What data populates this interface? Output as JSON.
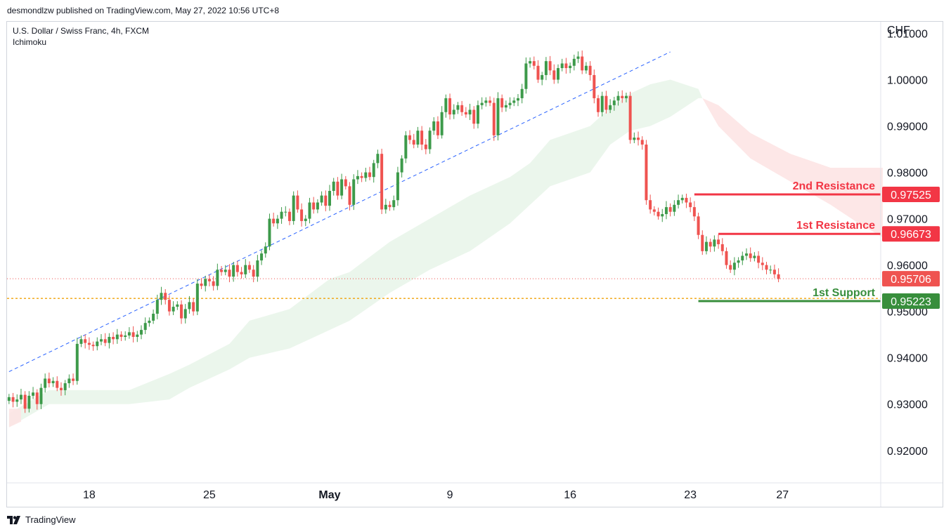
{
  "caption": "desmondlzw published on TradingView.com, May 27, 2022 10:56 UTC+8",
  "footer_brand": "TradingView",
  "colors": {
    "up": "#26a69a",
    "up_candle": "#3d9a4a",
    "down": "#ef5350",
    "cloud_green": "#e8f5e9",
    "cloud_red": "#fde4e4",
    "trendline": "#2962ff",
    "support": "#388e3c",
    "resistance": "#f23645",
    "yellow_dotted": "#f0a30a"
  },
  "chart_data": {
    "type": "candlestick",
    "symbol_line": "U.S. Dollar / Swiss Franc, 4h, FXCM",
    "indicator": "Ichimoku",
    "currency": "CHF",
    "y_ticks": [
      "1.01000",
      "1.00000",
      "0.99000",
      "0.98000",
      "0.97000",
      "0.96000",
      "0.95000",
      "0.94000",
      "0.93000",
      "0.92000"
    ],
    "y_tick_values": [
      1.01,
      1.0,
      0.99,
      0.98,
      0.97,
      0.96,
      0.95,
      0.94,
      0.93,
      0.92
    ],
    "ylim": [
      0.913,
      1.0125
    ],
    "x_ticks": [
      {
        "label": "18",
        "bold": false,
        "index": 20
      },
      {
        "label": "25",
        "bold": false,
        "index": 50
      },
      {
        "label": "May",
        "bold": true,
        "index": 80
      },
      {
        "label": "9",
        "bold": false,
        "index": 110
      },
      {
        "label": "16",
        "bold": false,
        "index": 140
      },
      {
        "label": "23",
        "bold": false,
        "index": 170
      },
      {
        "label": "27",
        "bold": false,
        "index": 193
      }
    ],
    "n_slots": 218,
    "closes": [
      0.9315,
      0.9305,
      0.931,
      0.932,
      0.929,
      0.9318,
      0.9325,
      0.93,
      0.9335,
      0.9355,
      0.9345,
      0.935,
      0.9335,
      0.933,
      0.9345,
      0.9355,
      0.935,
      0.943,
      0.944,
      0.9432,
      0.9428,
      0.9425,
      0.9435,
      0.944,
      0.9432,
      0.9445,
      0.944,
      0.945,
      0.9445,
      0.9448,
      0.9455,
      0.9445,
      0.945,
      0.946,
      0.9475,
      0.948,
      0.9495,
      0.9525,
      0.954,
      0.9525,
      0.95,
      0.951,
      0.9515,
      0.9485,
      0.9505,
      0.952,
      0.95,
      0.956,
      0.9555,
      0.957,
      0.9565,
      0.9555,
      0.959,
      0.9585,
      0.959,
      0.9575,
      0.96,
      0.9585,
      0.958,
      0.96,
      0.959,
      0.9575,
      0.961,
      0.9625,
      0.964,
      0.97,
      0.969,
      0.97,
      0.9715,
      0.9715,
      0.9695,
      0.975,
      0.972,
      0.9695,
      0.97,
      0.9735,
      0.972,
      0.9735,
      0.975,
      0.9728,
      0.976,
      0.978,
      0.975,
      0.9785,
      0.977,
      0.973,
      0.9785,
      0.9792,
      0.9788,
      0.98,
      0.979,
      0.982,
      0.984,
      0.972,
      0.973,
      0.9725,
      0.974,
      0.98,
      0.983,
      0.988,
      0.987,
      0.986,
      0.989,
      0.986,
      0.985,
      0.989,
      0.991,
      0.988,
      0.993,
      0.996,
      0.9925,
      0.9935,
      0.9945,
      0.993,
      0.9925,
      0.9935,
      0.9905,
      0.9945,
      0.995,
      0.9955,
      0.995,
      0.988,
      0.996,
      0.994,
      0.9945,
      0.995,
      0.9955,
      0.996,
      0.998,
      1.0035,
      1.004,
      1.003,
      1.0,
      1.001,
      1.004,
      1.002,
      1.0,
      1.0025,
      1.0035,
      1.0025,
      1.003,
      1.0045,
      1.005,
      1.002,
      1.003,
      1.001,
      0.996,
      0.993,
      0.9965,
      0.9935,
      0.9945,
      0.9955,
      0.9965,
      0.996,
      0.9965,
      0.987,
      0.9875,
      0.987,
      0.986,
      0.974,
      0.972,
      0.9715,
      0.9705,
      0.971,
      0.9725,
      0.9715,
      0.973,
      0.974,
      0.9745,
      0.9735,
      0.9725,
      0.9705,
      0.9665,
      0.963,
      0.965,
      0.964,
      0.9655,
      0.9645,
      0.963,
      0.96,
      0.959,
      0.9605,
      0.961,
      0.962,
      0.9625,
      0.9615,
      0.962,
      0.9605,
      0.96,
      0.959,
      0.959,
      0.958,
      0.957
    ],
    "cloud_points": [
      {
        "i": 0,
        "a": 0.928,
        "b": 0.925
      },
      {
        "i": 10,
        "a": 0.933,
        "b": 0.93
      },
      {
        "i": 20,
        "a": 0.933,
        "b": 0.93
      },
      {
        "i": 30,
        "a": 0.933,
        "b": 0.93
      },
      {
        "i": 40,
        "a": 0.9365,
        "b": 0.931
      },
      {
        "i": 45,
        "a": 0.9385,
        "b": 0.9335
      },
      {
        "i": 55,
        "a": 0.943,
        "b": 0.9375
      },
      {
        "i": 60,
        "a": 0.948,
        "b": 0.94
      },
      {
        "i": 70,
        "a": 0.9505,
        "b": 0.942
      },
      {
        "i": 80,
        "a": 0.957,
        "b": 0.946
      },
      {
        "i": 85,
        "a": 0.9585,
        "b": 0.948
      },
      {
        "i": 95,
        "a": 0.965,
        "b": 0.954
      },
      {
        "i": 105,
        "a": 0.97,
        "b": 0.959
      },
      {
        "i": 115,
        "a": 0.975,
        "b": 0.963
      },
      {
        "i": 125,
        "a": 0.979,
        "b": 0.969
      },
      {
        "i": 130,
        "a": 0.982,
        "b": 0.973
      },
      {
        "i": 135,
        "a": 0.987,
        "b": 0.977
      },
      {
        "i": 145,
        "a": 0.99,
        "b": 0.98
      },
      {
        "i": 150,
        "a": 0.994,
        "b": 0.986
      },
      {
        "i": 155,
        "a": 0.997,
        "b": 0.989
      },
      {
        "i": 160,
        "a": 0.999,
        "b": 0.99
      },
      {
        "i": 165,
        "a": 1.0,
        "b": 0.992
      },
      {
        "i": 172,
        "a": 0.998,
        "b": 0.996
      },
      {
        "i": 173,
        "a": 0.996,
        "b": 0.996
      }
    ],
    "cloud_red_points": [
      {
        "i": 173,
        "a": 0.996,
        "b": 0.996
      },
      {
        "i": 177,
        "a": 0.9945,
        "b": 0.99
      },
      {
        "i": 185,
        "a": 0.9885,
        "b": 0.983
      },
      {
        "i": 195,
        "a": 0.984,
        "b": 0.978
      },
      {
        "i": 205,
        "a": 0.981,
        "b": 0.973
      },
      {
        "i": 212,
        "a": 0.981,
        "b": 0.969
      },
      {
        "i": 218,
        "a": 0.981,
        "b": 0.966
      }
    ],
    "left_red_cloud": [
      {
        "i": 0,
        "a": 0.929,
        "b": 0.925
      },
      {
        "i": 3,
        "a": 0.929,
        "b": 0.9262
      }
    ],
    "trendline": {
      "start": {
        "i": 0,
        "v": 0.937
      },
      "end": {
        "i": 165,
        "v": 1.006
      }
    },
    "levels": [
      {
        "name": "2nd Resistance",
        "value": 0.97525,
        "label_price": "0.97525",
        "color": "#f23645",
        "start_i": 171
      },
      {
        "name": "1st Resistance",
        "value": 0.96673,
        "label_price": "0.96673",
        "color": "#f23645",
        "start_i": 177
      },
      {
        "name": "1st Support",
        "value": 0.95223,
        "label_price": "0.95223",
        "color": "#388e3c",
        "start_i": 172
      }
    ],
    "last_price": {
      "value": 0.95706,
      "label": "0.95706"
    },
    "dotted_support": 0.9528
  }
}
